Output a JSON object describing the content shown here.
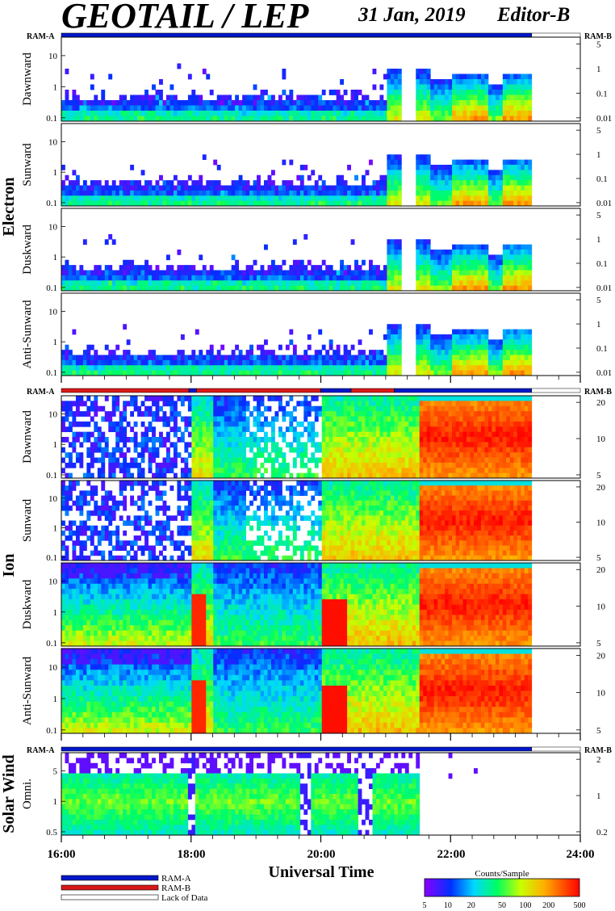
{
  "header": {
    "title": "GEOTAIL / LEP",
    "date": "31 Jan, 2019",
    "editor": "Editor-B"
  },
  "sections": {
    "electron": "Electron",
    "ion": "Ion",
    "solar_wind": "Solar Wind"
  },
  "ram_labels": {
    "ram_a": "RAM-A",
    "ram_b": "RAM-B"
  },
  "x_axis": {
    "label": "Universal Time",
    "ticks": [
      "16:00",
      "18:00",
      "20:00",
      "22:00",
      "24:00"
    ]
  },
  "legend": {
    "items": [
      {
        "label": "RAM-A",
        "color": "#0018c8"
      },
      {
        "label": "RAM-B",
        "color": "#d81818"
      },
      {
        "label": "Lack of Data",
        "color": "#ffffff"
      }
    ]
  },
  "colorbar": {
    "title": "Counts/Sample",
    "ticks": [
      "5",
      "10",
      "20",
      "50",
      "100",
      "200",
      "500"
    ]
  },
  "chart_data": {
    "type": "heatmap",
    "time_range": [
      "16:00",
      "24:00"
    ],
    "data_end": "23:15",
    "panels": [
      {
        "section": "electron",
        "label": "Dawnward",
        "left_ticks": [
          "10",
          "1",
          "0.1"
        ],
        "right_ticks": [
          "5",
          "1",
          "0.1",
          "0.01"
        ],
        "seed": 11,
        "species": "electron"
      },
      {
        "section": "electron",
        "label": "Sunward",
        "left_ticks": [
          "10",
          "1",
          "0.1"
        ],
        "right_ticks": [
          "5",
          "1",
          "0.1",
          "0.01"
        ],
        "seed": 23,
        "species": "electron"
      },
      {
        "section": "electron",
        "label": "Duskward",
        "left_ticks": [
          "10",
          "1",
          "0.1"
        ],
        "right_ticks": [
          "5",
          "1",
          "0.1",
          "0.01"
        ],
        "seed": 37,
        "species": "electron"
      },
      {
        "section": "electron",
        "label": "Anti-Sunward",
        "left_ticks": [
          "10",
          "1",
          "0.1"
        ],
        "right_ticks": [
          "5",
          "1",
          "0.1",
          "0.01"
        ],
        "seed": 41,
        "species": "electron"
      },
      {
        "section": "ion",
        "label": "Dawnward",
        "left_ticks": [
          "10",
          "1",
          "0.1"
        ],
        "right_ticks": [
          "20",
          "10",
          "5"
        ],
        "seed": 53,
        "species": "ion",
        "variant": 0
      },
      {
        "section": "ion",
        "label": "Sunward",
        "left_ticks": [
          "10",
          "1",
          "0.1"
        ],
        "right_ticks": [
          "20",
          "10",
          "5"
        ],
        "seed": 61,
        "species": "ion",
        "variant": 0
      },
      {
        "section": "ion",
        "label": "Duskward",
        "left_ticks": [
          "10",
          "1",
          "0.1"
        ],
        "right_ticks": [
          "20",
          "10",
          "5"
        ],
        "seed": 71,
        "species": "ion",
        "variant": 1
      },
      {
        "section": "ion",
        "label": "Anti-Sunward",
        "left_ticks": [
          "10",
          "1",
          "0.1"
        ],
        "right_ticks": [
          "20",
          "10",
          "5"
        ],
        "seed": 83,
        "species": "ion",
        "variant": 1
      },
      {
        "section": "solar_wind",
        "label": "Omni.",
        "left_ticks": [
          "5",
          "1",
          "0.5"
        ],
        "right_ticks": [
          "2",
          "1",
          "0.2"
        ],
        "seed": 97,
        "species": "sw"
      }
    ],
    "ram_bars": [
      {
        "group": "electron",
        "segments": [
          {
            "start": "16:00",
            "end": "23:15",
            "mode": "RAM-A"
          },
          {
            "start": "23:15",
            "end": "24:00",
            "mode": "Lack of Data"
          }
        ]
      },
      {
        "group": "ion",
        "segments": [
          {
            "start": "16:00",
            "end": "17:58",
            "mode": "RAM-B"
          },
          {
            "start": "17:58",
            "end": "18:05",
            "mode": "RAM-A"
          },
          {
            "start": "18:05",
            "end": "20:00",
            "mode": "RAM-B"
          },
          {
            "start": "20:00",
            "end": "20:28",
            "mode": "RAM-A"
          },
          {
            "start": "20:28",
            "end": "21:08",
            "mode": "RAM-B"
          },
          {
            "start": "21:08",
            "end": "23:15",
            "mode": "RAM-A"
          },
          {
            "start": "23:15",
            "end": "24:00",
            "mode": "Lack of Data"
          }
        ]
      },
      {
        "group": "solar_wind",
        "segments": [
          {
            "start": "16:00",
            "end": "23:15",
            "mode": "RAM-A"
          },
          {
            "start": "23:15",
            "end": "24:00",
            "mode": "Lack of Data"
          }
        ]
      }
    ]
  }
}
